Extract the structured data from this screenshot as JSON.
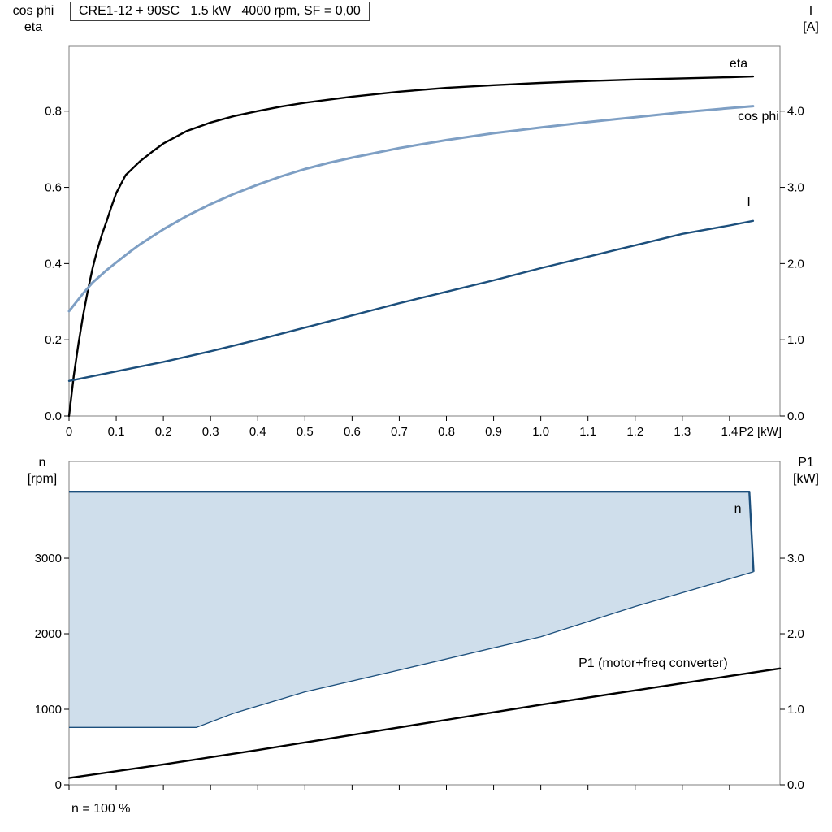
{
  "page": {
    "title_box": "CRE1-12 + 90SC   1.5 kW   4000 rpm, SF = 0,00",
    "footnote": "n = 100 %"
  },
  "colors": {
    "curve_black": "#000000",
    "cos_phi_blue": "#7e9fc4",
    "dark_blue": "#1c4f7c",
    "region_fill": "#cfdeeb",
    "frame_gray": "#7f7f7f",
    "tick": "#000000"
  },
  "chart_data": [
    {
      "id": "top",
      "type": "line",
      "title": "CRE1-12 + 90SC   1.5 kW   4000 rpm, SF = 0,00",
      "x_axis": {
        "label": "P2 [kW]",
        "range": [
          0,
          1.507
        ],
        "tick_values": [
          0,
          0.1,
          0.2,
          0.3,
          0.4,
          0.5,
          0.6,
          0.7,
          0.8,
          0.9,
          1.0,
          1.1,
          1.2,
          1.3,
          1.4
        ],
        "tick_labels": [
          "0",
          "0.1",
          "0.2",
          "0.3",
          "0.4",
          "0.5",
          "0.6",
          "0.7",
          "0.8",
          "0.9",
          "1.0",
          "1.1",
          "1.2",
          "1.3",
          "1.4"
        ]
      },
      "left_axis": {
        "title_lines": [
          "cos phi",
          "eta"
        ],
        "range": [
          0,
          0.97
        ],
        "tick_values": [
          0,
          0.2,
          0.4,
          0.6,
          0.8
        ],
        "tick_labels": [
          "0.0",
          "0.2",
          "0.4",
          "0.6",
          "0.8"
        ]
      },
      "right_axis": {
        "title_lines": [
          "I",
          "[A]"
        ],
        "range": [
          0,
          4.85
        ],
        "tick_values": [
          0,
          1,
          2,
          3,
          4
        ],
        "tick_labels": [
          "0.0",
          "1.0",
          "2.0",
          "3.0",
          "4.0"
        ]
      },
      "grid": false,
      "series": [
        {
          "name": "eta",
          "axis": "left_axis",
          "color_key": "curve_black",
          "width": 2.4,
          "points": [
            [
              0,
              0
            ],
            [
              0.01,
              0.105
            ],
            [
              0.02,
              0.19
            ],
            [
              0.03,
              0.265
            ],
            [
              0.04,
              0.33
            ],
            [
              0.05,
              0.388
            ],
            [
              0.06,
              0.436
            ],
            [
              0.07,
              0.477
            ],
            [
              0.08,
              0.512
            ],
            [
              0.09,
              0.55
            ],
            [
              0.1,
              0.585
            ],
            [
              0.12,
              0.632
            ],
            [
              0.15,
              0.668
            ],
            [
              0.18,
              0.697
            ],
            [
              0.2,
              0.715
            ],
            [
              0.25,
              0.748
            ],
            [
              0.3,
              0.77
            ],
            [
              0.35,
              0.787
            ],
            [
              0.4,
              0.8
            ],
            [
              0.45,
              0.812
            ],
            [
              0.5,
              0.822
            ],
            [
              0.6,
              0.838
            ],
            [
              0.7,
              0.851
            ],
            [
              0.8,
              0.861
            ],
            [
              0.9,
              0.868
            ],
            [
              1.0,
              0.874
            ],
            [
              1.1,
              0.879
            ],
            [
              1.2,
              0.883
            ],
            [
              1.3,
              0.886
            ],
            [
              1.4,
              0.889
            ],
            [
              1.45,
              0.891
            ]
          ]
        },
        {
          "name": "cos phi",
          "axis": "left_axis",
          "color_key": "cos_phi_blue",
          "width": 3,
          "points": [
            [
              0,
              0.275
            ],
            [
              0.03,
              0.322
            ],
            [
              0.05,
              0.35
            ],
            [
              0.08,
              0.383
            ],
            [
              0.1,
              0.403
            ],
            [
              0.13,
              0.432
            ],
            [
              0.15,
              0.45
            ],
            [
              0.2,
              0.49
            ],
            [
              0.25,
              0.525
            ],
            [
              0.3,
              0.556
            ],
            [
              0.35,
              0.583
            ],
            [
              0.4,
              0.607
            ],
            [
              0.45,
              0.629
            ],
            [
              0.5,
              0.648
            ],
            [
              0.55,
              0.664
            ],
            [
              0.6,
              0.678
            ],
            [
              0.7,
              0.703
            ],
            [
              0.8,
              0.724
            ],
            [
              0.9,
              0.742
            ],
            [
              1.0,
              0.757
            ],
            [
              1.1,
              0.771
            ],
            [
              1.2,
              0.784
            ],
            [
              1.3,
              0.797
            ],
            [
              1.4,
              0.808
            ],
            [
              1.45,
              0.813
            ]
          ]
        },
        {
          "name": "I",
          "axis": "right_axis",
          "color_key": "dark_blue",
          "width": 2.4,
          "points": [
            [
              0,
              0.46
            ],
            [
              0.1,
              0.585
            ],
            [
              0.2,
              0.71
            ],
            [
              0.3,
              0.85
            ],
            [
              0.4,
              1.0
            ],
            [
              0.5,
              1.16
            ],
            [
              0.6,
              1.32
            ],
            [
              0.7,
              1.48
            ],
            [
              0.8,
              1.63
            ],
            [
              0.9,
              1.78
            ],
            [
              1.0,
              1.94
            ],
            [
              1.1,
              2.09
            ],
            [
              1.2,
              2.24
            ],
            [
              1.3,
              2.39
            ],
            [
              1.4,
              2.5
            ],
            [
              1.45,
              2.56
            ]
          ]
        }
      ],
      "annotations": [
        {
          "text": "eta",
          "x": 1.4,
          "y": 0.915,
          "axis": "left_axis",
          "color_key": "curve_black",
          "anchor": "start"
        },
        {
          "text": "cos phi",
          "x": 1.505,
          "y": 0.776,
          "axis": "left_axis",
          "color_key": "cos_phi_blue",
          "anchor": "end"
        },
        {
          "text": "I",
          "x": 1.437,
          "y": 2.75,
          "axis": "right_axis",
          "color_key": "dark_blue",
          "anchor": "start"
        }
      ]
    },
    {
      "id": "bottom",
      "type": "line",
      "title": "",
      "x_axis": {
        "label": "",
        "range": [
          0,
          1.507
        ],
        "tick_values": [
          0,
          0.1,
          0.2,
          0.3,
          0.4,
          0.5,
          0.6,
          0.7,
          0.8,
          0.9,
          1.0,
          1.1,
          1.2,
          1.3,
          1.4
        ],
        "tick_labels": [
          "",
          "",
          "",
          "",
          "",
          "",
          "",
          "",
          "",
          "",
          "",
          "",
          "",
          "",
          ""
        ]
      },
      "left_axis": {
        "title_lines": [
          "n",
          "[rpm]"
        ],
        "range": [
          0,
          4280
        ],
        "tick_values": [
          0,
          1000,
          2000,
          3000
        ],
        "tick_labels": [
          "0",
          "1000",
          "2000",
          "3000"
        ]
      },
      "right_axis": {
        "title_lines": [
          "P1",
          "[kW]"
        ],
        "range": [
          0,
          4.28
        ],
        "tick_values": [
          0,
          1,
          2,
          3
        ],
        "tick_labels": [
          "0.0",
          "1.0",
          "2.0",
          "3.0"
        ]
      },
      "grid": false,
      "region": {
        "name": "n-operating-region",
        "fill_key": "region_fill",
        "stroke_key": "dark_blue",
        "upper_width": 2.4,
        "lower_width": 1.3,
        "upper": [
          [
            0,
            3880
          ],
          [
            1.442,
            3880
          ],
          [
            1.451,
            2820
          ]
        ],
        "lower": [
          [
            0,
            760
          ],
          [
            0.27,
            760
          ],
          [
            0.35,
            950
          ],
          [
            0.5,
            1230
          ],
          [
            0.7,
            1520
          ],
          [
            1.0,
            1960
          ],
          [
            1.2,
            2360
          ],
          [
            1.451,
            2820
          ]
        ]
      },
      "series": [
        {
          "name": "P1 (motor+freq converter)",
          "axis": "right_axis",
          "color_key": "curve_black",
          "width": 2.4,
          "points": [
            [
              0,
              0.09
            ],
            [
              0.2,
              0.27
            ],
            [
              0.4,
              0.46
            ],
            [
              0.6,
              0.66
            ],
            [
              0.8,
              0.86
            ],
            [
              1.0,
              1.06
            ],
            [
              1.2,
              1.25
            ],
            [
              1.4,
              1.44
            ],
            [
              1.507,
              1.54
            ]
          ]
        }
      ],
      "annotations": [
        {
          "text": "n",
          "x": 1.41,
          "y": 3600,
          "axis": "left_axis",
          "color_key": "dark_blue",
          "anchor": "start"
        },
        {
          "text": "P1 (motor+freq converter)",
          "x": 1.08,
          "y": 1.56,
          "axis": "right_axis",
          "color_key": "curve_black",
          "anchor": "start"
        }
      ]
    }
  ]
}
